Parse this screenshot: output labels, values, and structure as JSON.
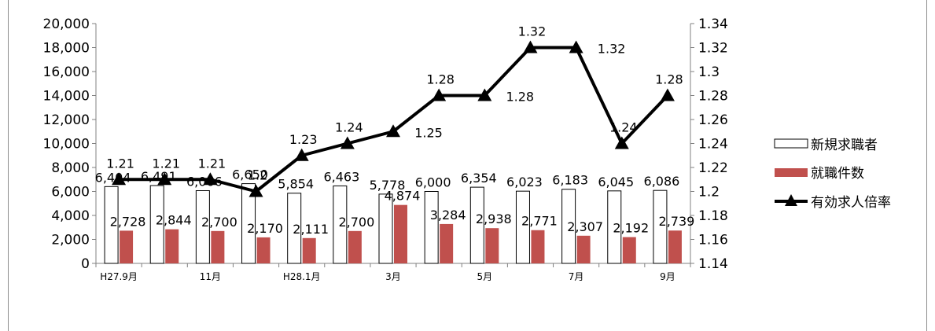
{
  "chart_data": {
    "type": "bar",
    "categories": [
      "H27.9月",
      "",
      "11月",
      "",
      "H28.1月",
      "",
      "3月",
      "",
      "5月",
      "",
      "7月",
      "",
      "9月"
    ],
    "series": [
      {
        "name": "新規求職者",
        "kind": "bar",
        "axis": "left",
        "values": [
          6404,
          6491,
          6066,
          6650,
          5854,
          6463,
          5778,
          6000,
          6354,
          6023,
          6183,
          6045,
          6086
        ],
        "labels": [
          "6,404",
          "6,491",
          "6,066",
          "6,650",
          "5,854",
          "6,463",
          "5,778",
          "6,000",
          "6,354",
          "6,023",
          "6,183",
          "6,045",
          "6,086"
        ]
      },
      {
        "name": "就職件数",
        "kind": "bar",
        "axis": "left",
        "values": [
          2728,
          2844,
          2700,
          2170,
          2111,
          2700,
          4874,
          3284,
          2938,
          2771,
          2307,
          2192,
          2739
        ],
        "labels": [
          "2,728",
          "2,844",
          "2,700",
          "2,170",
          "2,111",
          "2,700",
          "4,874",
          "3,284",
          "2,938",
          "2,771",
          "2,307",
          "2,192",
          "2,739"
        ]
      },
      {
        "name": "有効求人倍率",
        "kind": "line",
        "axis": "right",
        "values": [
          1.21,
          1.21,
          1.21,
          1.2,
          1.23,
          1.24,
          1.25,
          1.28,
          1.28,
          1.32,
          1.32,
          1.24,
          1.28
        ],
        "labels": [
          "1.21",
          "1.21",
          "1.21",
          "1.2",
          "1.23",
          "1.24",
          "1.25",
          "1.28",
          "1.28",
          "1.32",
          "1.32",
          "1.24",
          "1.28"
        ]
      }
    ],
    "left_axis": {
      "ylim": [
        0,
        20000
      ],
      "ticks": [
        "0",
        "2,000",
        "4,000",
        "6,000",
        "8,000",
        "10,000",
        "12,000",
        "14,000",
        "16,000",
        "18,000",
        "20,000"
      ]
    },
    "right_axis": {
      "ylim": [
        1.14,
        1.34
      ],
      "ticks": [
        "1.14",
        "1.16",
        "1.18",
        "1.2",
        "1.22",
        "1.24",
        "1.26",
        "1.28",
        "1.3",
        "1.32",
        "1.34"
      ]
    },
    "legend_position": "right",
    "colors": {
      "bar_primary": "#ffffff",
      "bar_secondary": "#c0504d",
      "line": "#000000"
    }
  }
}
